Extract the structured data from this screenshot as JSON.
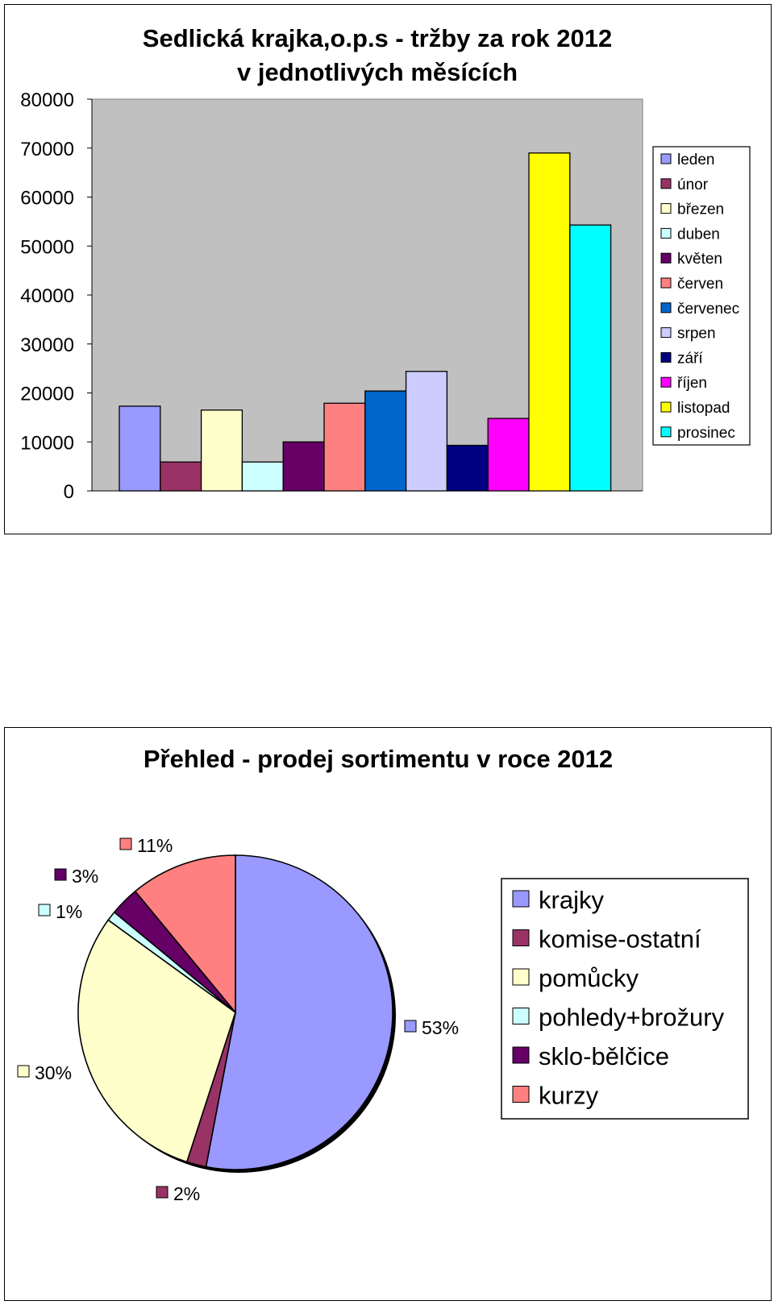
{
  "chart_data": [
    {
      "type": "bar",
      "title": "Sedlická krajka,o.p.s - tržby za rok 2012",
      "subtitle": "v jednotlivých měsících",
      "categories": [
        "leden",
        "únor",
        "březen",
        "duben",
        "květen",
        "červen",
        "červenec",
        "srpen",
        "září",
        "říjen",
        "listopad",
        "prosinec"
      ],
      "values": [
        17300,
        5900,
        16500,
        5900,
        10000,
        17900,
        20400,
        24400,
        9300,
        14800,
        69000,
        54300
      ],
      "colors": [
        "#9999ff",
        "#993366",
        "#ffffcc",
        "#ccffff",
        "#660066",
        "#ff8080",
        "#0066cc",
        "#ccccff",
        "#000080",
        "#ff00ff",
        "#ffff00",
        "#00ffff"
      ],
      "ylim": [
        0,
        80000
      ],
      "yticks": [
        "0",
        "10000",
        "20000",
        "30000",
        "40000",
        "50000",
        "60000",
        "70000",
        "80000"
      ],
      "plot_background": "#c0c0c0",
      "legend_position": "right"
    },
    {
      "type": "pie",
      "title": "Přehled - prodej sortimentu v roce 2012",
      "categories": [
        "krajky",
        "komise-ostatní",
        "pomůcky",
        "pohledy+brožury",
        "sklo-bělčice",
        "kurzy"
      ],
      "values": [
        53,
        2,
        30,
        1,
        3,
        11
      ],
      "labels": [
        "53%",
        "2%",
        "30%",
        "1%",
        "3%",
        "11%"
      ],
      "colors": [
        "#9999ff",
        "#993366",
        "#ffffcc",
        "#ccffff",
        "#660066",
        "#ff8080"
      ],
      "legend_position": "right"
    }
  ]
}
